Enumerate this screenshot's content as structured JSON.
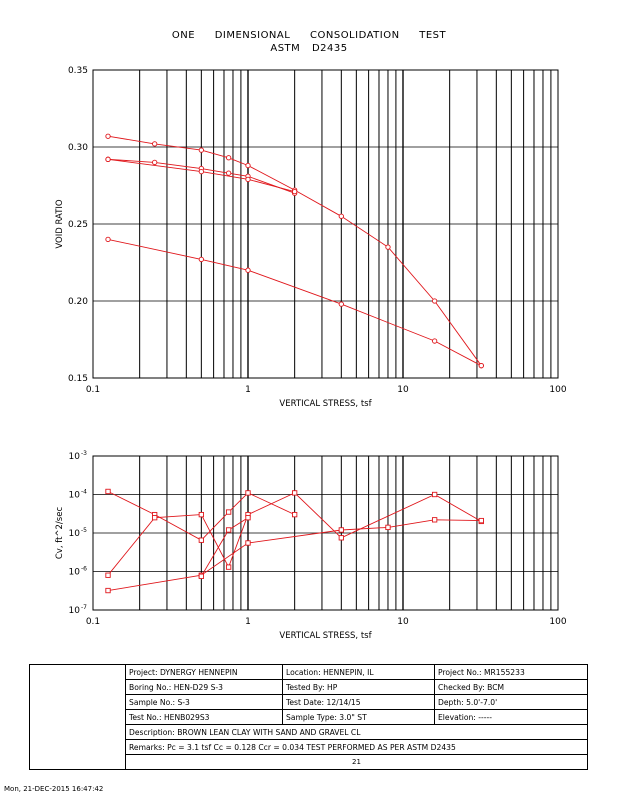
{
  "title": {
    "line1": "ONE DIMENSIONAL CONSOLIDATION TEST",
    "line2": "ASTM D2435"
  },
  "colors": {
    "curve": "#e0171c",
    "grid": "#000000"
  },
  "chart_data": [
    {
      "type": "line",
      "xscale": "log",
      "xlim": [
        0.1,
        100
      ],
      "ylim": [
        0.15,
        0.35
      ],
      "xlabel": "VERTICAL STRESS, tsf",
      "ylabel": "VOID RATIO",
      "x_ticks": [
        "0.1",
        "1",
        "10",
        "100"
      ],
      "y_ticks": [
        "0.35",
        "0.30",
        "0.25",
        "0.20",
        "0.15"
      ],
      "y_tick_values": [
        0.35,
        0.3,
        0.25,
        0.2,
        0.15
      ],
      "marker": "circle",
      "series": [
        {
          "x": [
            0.125,
            0.25,
            0.5,
            0.75,
            1,
            2,
            4,
            8,
            16,
            32
          ],
          "y": [
            0.307,
            0.302,
            0.298,
            0.293,
            0.288,
            0.272,
            0.255,
            0.235,
            0.2,
            0.158
          ]
        },
        {
          "x": [
            32,
            16,
            4,
            1,
            0.5,
            0.125
          ],
          "y": [
            0.158,
            0.174,
            0.198,
            0.22,
            0.227,
            0.24
          ]
        },
        {
          "x": [
            0.125,
            0.25,
            0.5,
            0.75,
            1,
            2
          ],
          "y": [
            0.292,
            0.29,
            0.286,
            0.283,
            0.281,
            0.27
          ]
        },
        {
          "x": [
            0.125,
            0.5,
            1,
            2
          ],
          "y": [
            0.292,
            0.284,
            0.279,
            0.271
          ]
        }
      ]
    },
    {
      "type": "line",
      "xscale": "log",
      "yscale": "log",
      "xlim": [
        0.1,
        100
      ],
      "ylim": [
        1e-07,
        0.001
      ],
      "xlabel": "VERTICAL STRESS, tsf",
      "ylabel": "Cv, ft^2/sec",
      "x_ticks": [
        "0.1",
        "1",
        "10",
        "100"
      ],
      "y_tick_exponents": [
        "-3",
        "-4",
        "-5",
        "-6",
        "-7"
      ],
      "y_tick_values": [
        0.001,
        0.0001,
        1e-05,
        1e-06,
        1e-07
      ],
      "marker": "square",
      "series": [
        {
          "x": [
            0.125,
            0.25,
            0.5,
            0.75,
            1,
            2
          ],
          "y": [
            0.00012,
            3e-05,
            6.5e-06,
            3.5e-05,
            0.00011,
            3e-05
          ]
        },
        {
          "x": [
            0.125,
            0.25,
            0.5,
            0.75,
            1,
            2,
            4,
            16,
            32
          ],
          "y": [
            8e-07,
            2.5e-05,
            3e-05,
            1.3e-06,
            3e-05,
            0.00011,
            7.5e-06,
            0.0001,
            2e-05
          ]
        },
        {
          "x": [
            0.125,
            0.5,
            1,
            4,
            8,
            16,
            32
          ],
          "y": [
            3.2e-07,
            8e-07,
            5.5e-06,
            1.2e-05,
            1.4e-05,
            2.2e-05,
            2.1e-05
          ]
        },
        {
          "x": [
            0.5,
            0.75,
            1
          ],
          "y": [
            7.5e-07,
            1.2e-05,
            2.5e-05
          ]
        }
      ]
    }
  ],
  "info": {
    "project": "Project: DYNERGY HENNEPIN",
    "location": "Location: HENNEPIN, IL",
    "project_no": "Project No.: MR155233",
    "boring": "Boring No.: HEN-D29 S-3",
    "tested_by": "Tested By: HP",
    "checked_by": "Checked By: BCM",
    "sample": "Sample No.: S-3",
    "test_date": "Test Date: 12/14/15",
    "depth": "Depth: 5.0'-7.0'",
    "test_no": "Test No.: HENB029S3",
    "sample_type": "Sample Type: 3.0\" ST",
    "elevation": "Elevation: -----",
    "description": "Description: BROWN LEAN CLAY WITH SAND AND GRAVEL CL",
    "remarks": "Remarks: Pc = 3.1 tsf Cc = 0.128 Ccr = 0.034 TEST PERFORMED AS PER ASTM D2435",
    "figure_mark": "21"
  },
  "timestamp": "Mon, 21-DEC-2015 16:47:42"
}
